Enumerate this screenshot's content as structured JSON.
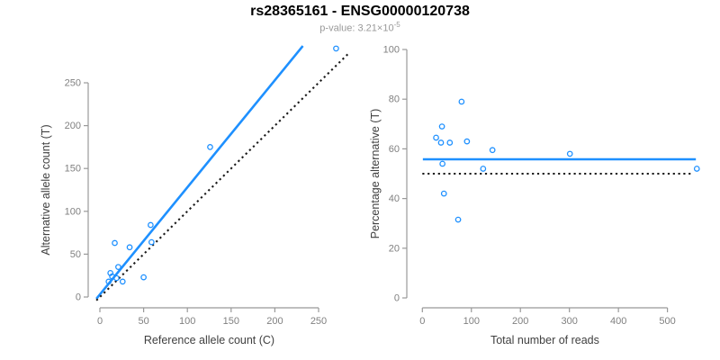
{
  "header": {
    "title": "rs28365161 - ENSG00000120738",
    "pvalue_label": "p-value: 3.21×10",
    "pvalue_exponent": "-5"
  },
  "colors": {
    "accent_blue": "#1E90FF",
    "line_black": "#1A1A1A",
    "axis_line": "#999999",
    "tick_label": "#808080",
    "axis_label": "#404040",
    "subtitle_text": "#999999",
    "title_text": "#000000",
    "background": "#FFFFFF"
  },
  "chart_data": [
    {
      "name": "allele-counts-panel",
      "type": "scatter",
      "xlabel": "Reference allele count (C)",
      "ylabel": "Alternative allele count (T)",
      "xlim": [
        0,
        280
      ],
      "ylim": [
        0,
        295
      ],
      "x_ticks": [
        0,
        50,
        100,
        150,
        200,
        250
      ],
      "y_ticks": [
        0,
        50,
        100,
        150,
        200,
        250
      ],
      "grid": false,
      "legend": "none",
      "points": [
        [
          10,
          18
        ],
        [
          12,
          28
        ],
        [
          14,
          24
        ],
        [
          17,
          63
        ],
        [
          19,
          22
        ],
        [
          21,
          35
        ],
        [
          26,
          18
        ],
        [
          34,
          58
        ],
        [
          50,
          23
        ],
        [
          58,
          84
        ],
        [
          59,
          64
        ],
        [
          126,
          175
        ],
        [
          270,
          290
        ]
      ],
      "lines": [
        {
          "name": "fit-line",
          "style": "solid",
          "color": "#1E90FF",
          "slope": 1.25,
          "intercept": 3,
          "x_range": [
            -4,
            232
          ]
        },
        {
          "name": "identity-line",
          "style": "dotted",
          "color": "#1A1A1A",
          "slope": 1,
          "intercept": 0,
          "x_range": [
            -4,
            284
          ]
        }
      ]
    },
    {
      "name": "percentage-panel",
      "type": "scatter",
      "xlabel": "Total number of reads",
      "ylabel": "Percentage alternative (T)",
      "xlim": [
        0,
        560
      ],
      "ylim": [
        0,
        100
      ],
      "x_ticks": [
        0,
        100,
        200,
        300,
        400,
        500
      ],
      "y_ticks": [
        0,
        20,
        40,
        60,
        80,
        100
      ],
      "grid": false,
      "legend": "none",
      "points": [
        [
          28,
          64.5
        ],
        [
          38,
          62.5
        ],
        [
          40,
          69
        ],
        [
          41,
          54
        ],
        [
          44,
          42
        ],
        [
          56,
          62.5
        ],
        [
          73,
          31.5
        ],
        [
          80,
          79
        ],
        [
          91,
          63
        ],
        [
          124,
          52
        ],
        [
          143,
          59.5
        ],
        [
          301,
          58
        ],
        [
          560,
          52
        ]
      ],
      "lines": [
        {
          "name": "mean-line",
          "style": "solid",
          "color": "#1E90FF",
          "y": 55.8,
          "x_range": [
            1,
            558
          ]
        },
        {
          "name": "expected-50-line",
          "style": "dotted",
          "color": "#1A1A1A",
          "y": 50,
          "x_range": [
            0,
            552
          ]
        }
      ]
    }
  ]
}
